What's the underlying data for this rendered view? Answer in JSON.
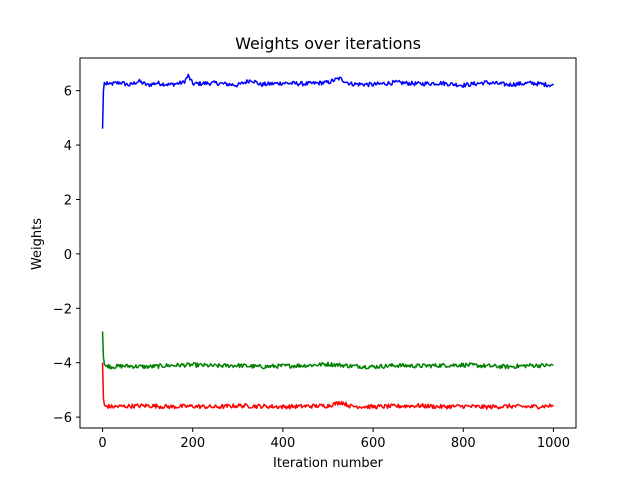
{
  "chart_data": {
    "type": "line",
    "title": "Weights over iterations",
    "xlabel": "Iteration number",
    "ylabel": "Weights",
    "xlim": [
      -50,
      1050
    ],
    "ylim": [
      -6.4,
      7.2
    ],
    "xticks": [
      0,
      200,
      400,
      600,
      800,
      1000
    ],
    "xtick_labels": [
      "0",
      "200",
      "400",
      "600",
      "800",
      "1000"
    ],
    "yticks": [
      -6,
      -4,
      -2,
      0,
      2,
      4,
      6
    ],
    "ytick_labels": [
      "−6",
      "−4",
      "−2",
      "0",
      "2",
      "4",
      "6"
    ],
    "grid": false,
    "legend": null,
    "series": [
      {
        "name": "weight-blue",
        "color": "#0000ff",
        "x": [
          0,
          1,
          2,
          3,
          4,
          6,
          8,
          10,
          15,
          20,
          40,
          60,
          80,
          100,
          120,
          150,
          180,
          190,
          200,
          250,
          300,
          330,
          350,
          400,
          450,
          500,
          525,
          550,
          600,
          650,
          700,
          750,
          800,
          850,
          900,
          950,
          1000
        ],
        "values": [
          4.6,
          5.5,
          6.0,
          6.2,
          6.3,
          6.25,
          6.22,
          6.3,
          6.2,
          6.25,
          6.3,
          6.2,
          6.35,
          6.2,
          6.28,
          6.22,
          6.3,
          6.55,
          6.25,
          6.28,
          6.2,
          6.4,
          6.22,
          6.28,
          6.25,
          6.3,
          6.45,
          6.25,
          6.22,
          6.3,
          6.25,
          6.28,
          6.2,
          6.3,
          6.22,
          6.28,
          6.2
        ]
      },
      {
        "name": "weight-green",
        "color": "#008000",
        "x": [
          0,
          1,
          2,
          3,
          5,
          8,
          10,
          20,
          50,
          100,
          150,
          200,
          250,
          300,
          350,
          400,
          450,
          500,
          550,
          600,
          650,
          700,
          750,
          800,
          850,
          900,
          950,
          1000
        ],
        "values": [
          -2.85,
          -3.4,
          -3.8,
          -4.0,
          -4.1,
          -4.12,
          -4.1,
          -4.15,
          -4.12,
          -4.15,
          -4.1,
          -4.08,
          -4.12,
          -4.1,
          -4.15,
          -4.12,
          -4.1,
          -4.05,
          -4.12,
          -4.15,
          -4.1,
          -4.12,
          -4.1,
          -4.08,
          -4.12,
          -4.15,
          -4.1,
          -4.1
        ]
      },
      {
        "name": "weight-red",
        "color": "#ff0000",
        "x": [
          0,
          1,
          2,
          3,
          5,
          8,
          10,
          20,
          50,
          100,
          150,
          200,
          250,
          300,
          350,
          400,
          450,
          500,
          530,
          550,
          600,
          650,
          700,
          750,
          800,
          850,
          900,
          950,
          1000
        ],
        "values": [
          -4.0,
          -4.8,
          -5.3,
          -5.5,
          -5.6,
          -5.58,
          -5.6,
          -5.62,
          -5.6,
          -5.58,
          -5.62,
          -5.6,
          -5.63,
          -5.58,
          -5.6,
          -5.62,
          -5.6,
          -5.58,
          -5.45,
          -5.6,
          -5.62,
          -5.6,
          -5.58,
          -5.62,
          -5.6,
          -5.63,
          -5.6,
          -5.62,
          -5.58
        ]
      }
    ]
  }
}
